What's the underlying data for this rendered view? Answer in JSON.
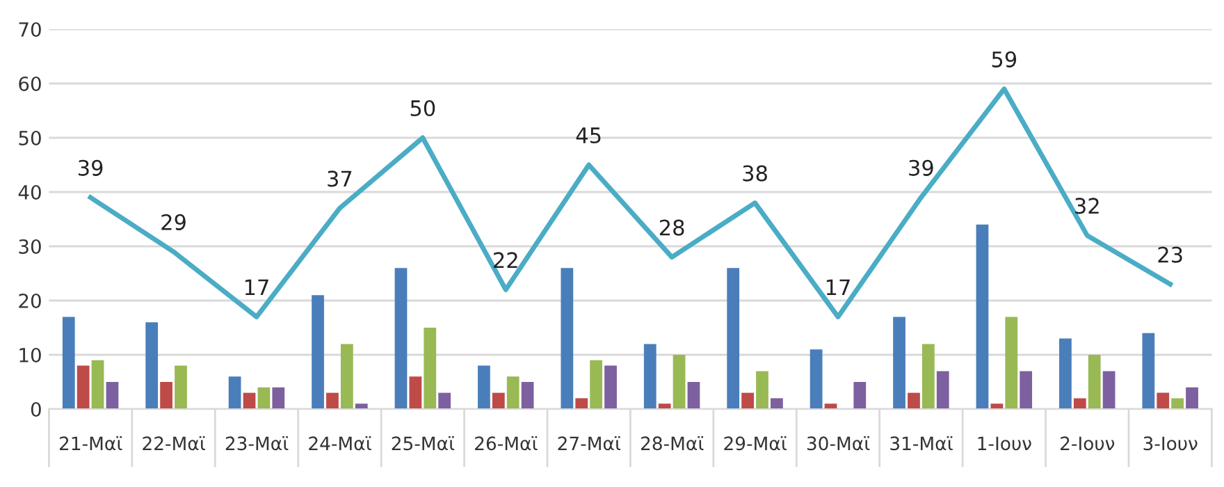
{
  "chart_data": {
    "type": "bar",
    "categories": [
      "21-Μαϊ",
      "22-Μαϊ",
      "23-Μαϊ",
      "24-Μαϊ",
      "25-Μαϊ",
      "26-Μαϊ",
      "27-Μαϊ",
      "28-Μαϊ",
      "29-Μαϊ",
      "30-Μαϊ",
      "31-Μαϊ",
      "1-Ιουν",
      "2-Ιουν",
      "3-Ιουν"
    ],
    "series": [
      {
        "color": "#4a7ebb",
        "values": [
          17,
          16,
          6,
          21,
          26,
          8,
          26,
          12,
          26,
          11,
          17,
          34,
          13,
          14
        ]
      },
      {
        "color": "#be4b48",
        "values": [
          8,
          5,
          3,
          3,
          6,
          3,
          2,
          1,
          3,
          1,
          3,
          1,
          2,
          3
        ]
      },
      {
        "color": "#98b954",
        "values": [
          9,
          8,
          4,
          12,
          15,
          6,
          9,
          10,
          7,
          0,
          12,
          17,
          10,
          2
        ]
      },
      {
        "color": "#7d60a0",
        "values": [
          5,
          0,
          4,
          1,
          3,
          5,
          8,
          5,
          2,
          5,
          7,
          7,
          7,
          4
        ]
      },
      {
        "type": "line",
        "color": "#4bacc6",
        "values": [
          39,
          29,
          17,
          37,
          50,
          22,
          45,
          28,
          38,
          17,
          39,
          59,
          32,
          23
        ],
        "value_labels": [
          "39",
          "29",
          "17",
          "37",
          "50",
          "22",
          "45",
          "28",
          "38",
          "17",
          "39",
          "59",
          "32",
          "23"
        ]
      }
    ],
    "ylim": [
      0,
      70
    ],
    "yticks": [
      0,
      10,
      20,
      30,
      40,
      50,
      60,
      70
    ],
    "grid": "y"
  }
}
